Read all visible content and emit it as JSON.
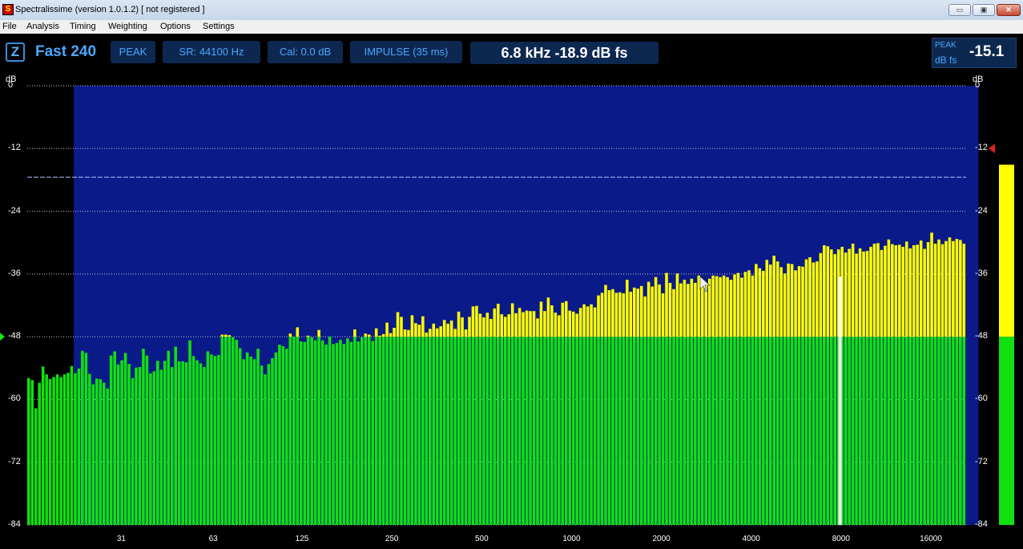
{
  "window": {
    "title": "Spectralissime (version 1.0.1.2) [ not registered ]",
    "icon": "S",
    "minimize_glyph": "▭",
    "restore_glyph": "▣",
    "close_glyph": "✕"
  },
  "menu": [
    "File",
    "Analysis",
    "Timing",
    "Weighting",
    "Options",
    "Settings"
  ],
  "toolbar": {
    "z_label": "Z",
    "mode": "Fast 240",
    "peak_label": "PEAK",
    "sample_rate": "SR: 44100 Hz",
    "calibration": "Cal:  0.0 dB",
    "timing": "IMPULSE (35 ms)",
    "readout": "6.8 kHz   -18.9 dB fs",
    "peak_box_label": "PEAK",
    "peak_box_unit": "dB fs",
    "peak_box_value": "-15.1"
  },
  "colors": {
    "green": "#10e010",
    "yellow": "#ffff00",
    "band_blue": "#0a1a88",
    "band_dark": "#04082c"
  },
  "chart_data": {
    "type": "bar",
    "left_axis_label": "dB",
    "right_axis_label": "dB",
    "y_ticks": [
      "0",
      "-12",
      "-24",
      "-36",
      "-48",
      "-60",
      "-72",
      "-84"
    ],
    "ylim": [
      -84,
      0
    ],
    "x_ticks": [
      "31",
      "63",
      "125",
      "250",
      "500",
      "1000",
      "2000",
      "4000",
      "8000",
      "16000"
    ],
    "threshold_db": -48,
    "reference_line_db": -17.5,
    "cursor_frequency_hz": 6800,
    "level_meter_db": -15.1,
    "values": [
      -55.9,
      -56.3,
      -61.7,
      -56.8,
      -53.7,
      -55.2,
      -56.1,
      -55.7,
      -55.2,
      -55.7,
      -55.2,
      -54.9,
      -53.6,
      -55.0,
      -54.1,
      -50.7,
      -51.1,
      -55.1,
      -57.1,
      -56.0,
      -56.1,
      -56.8,
      -57.9,
      -51.6,
      -50.8,
      -53.3,
      -52.5,
      -51.1,
      -53.2,
      -55.9,
      -53.9,
      -53.8,
      -50.3,
      -51.6,
      -55.0,
      -54.6,
      -52.6,
      -54.3,
      -52.6,
      -50.7,
      -53.8,
      -49.9,
      -52.7,
      -52.7,
      -52.9,
      -48.7,
      -51.7,
      -52.5,
      -53.1,
      -53.8,
      -50.8,
      -51.4,
      -51.7,
      -51.5,
      -47.6,
      -47.6,
      -47.7,
      -48.1,
      -48.6,
      -50.2,
      -52.3,
      -51.0,
      -51.8,
      -52.3,
      -50.3,
      -53.5,
      -55.2,
      -53.2,
      -52.1,
      -51.0,
      -49.5,
      -49.8,
      -50.3,
      -47.4,
      -48.0,
      -46.2,
      -48.9,
      -49.0,
      -47.8,
      -48.1,
      -48.7,
      -46.7,
      -48.7,
      -49.5,
      -48.0,
      -49.4,
      -49.2,
      -48.6,
      -49.4,
      -48.3,
      -49.0,
      -46.6,
      -48.9,
      -48.1,
      -47.4,
      -47.6,
      -48.8,
      -46.4,
      -47.8,
      -47.5,
      -45.3,
      -47.3,
      -46.3,
      -43.3,
      -44.2,
      -46.6,
      -46.7,
      -43.9,
      -45.4,
      -45.7,
      -44.1,
      -47.2,
      -46.5,
      -45.5,
      -46.4,
      -46.0,
      -44.8,
      -45.5,
      -44.9,
      -46.5,
      -43.2,
      -44.3,
      -46.6,
      -44.2,
      -42.2,
      -42.1,
      -43.6,
      -44.3,
      -43.4,
      -44.6,
      -42.6,
      -41.7,
      -43.7,
      -44.2,
      -43.7,
      -41.6,
      -43.5,
      -42.5,
      -43.3,
      -43.0,
      -43.1,
      -43.1,
      -44.5,
      -41.3,
      -43.1,
      -40.5,
      -42.0,
      -43.4,
      -43.9,
      -41.5,
      -41.2,
      -43.0,
      -43.2,
      -43.6,
      -42.5,
      -41.8,
      -42.2,
      -41.8,
      -42.4,
      -40.1,
      -39.6,
      -38.1,
      -39.1,
      -38.9,
      -39.6,
      -39.5,
      -39.7,
      -37.1,
      -39.4,
      -38.6,
      -38.8,
      -38.3,
      -40.3,
      -37.5,
      -38.4,
      -36.6,
      -38.0,
      -39.7,
      -35.8,
      -37.7,
      -38.9,
      -35.9,
      -37.8,
      -37.1,
      -37.9,
      -36.9,
      -37.7,
      -36.3,
      -37.4,
      -37.7,
      -36.9,
      -36.3,
      -36.4,
      -36.6,
      -36.3,
      -36.6,
      -37.1,
      -36.1,
      -35.8,
      -36.7,
      -35.6,
      -35.3,
      -36.3,
      -34.1,
      -34.9,
      -35.4,
      -33.3,
      -34.2,
      -32.5,
      -33.6,
      -34.7,
      -35.9,
      -34.0,
      -34.1,
      -35.3,
      -34.5,
      -34.6,
      -33.2,
      -32.8,
      -33.8,
      -33.6,
      -32.0,
      -30.5,
      -30.7,
      -31.3,
      -32.2,
      -31.3,
      -30.8,
      -31.9,
      -31.2,
      -30.2,
      -32.1,
      -31.1,
      -31.7,
      -31.6,
      -30.8,
      -30.2,
      -30.1,
      -31.4,
      -30.6,
      -29.4,
      -30.3,
      -30.5,
      -30.4,
      -30.8,
      -29.8,
      -31.1,
      -30.5,
      -30.4,
      -29.6,
      -31.2,
      -29.9,
      -28.1,
      -30.2,
      -29.4,
      -30.3,
      -29.7,
      -29.0,
      -29.7,
      -29.3,
      -29.5,
      -30.2
    ]
  }
}
